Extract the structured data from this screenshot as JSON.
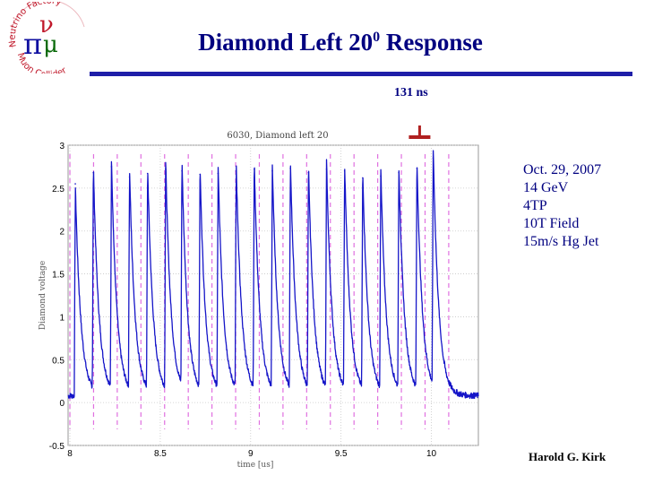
{
  "logo": {
    "arc_top": "Neutrino Factory",
    "arc_bottom": "Muon Collider",
    "symbols": "πμν",
    "colors": {
      "pi": "#1010a0",
      "mu": "#0a6a0a",
      "nu": "#c0182a",
      "ring": "#c0182a"
    }
  },
  "title": {
    "main": "Diamond Left 20",
    "superscript": "0",
    "suffix": " Response"
  },
  "annotation": {
    "label": "131 ns"
  },
  "info": {
    "lines": [
      "Oct. 29, 2007",
      "14 GeV",
      "4TP",
      "10T Field",
      "15m/s Hg Jet"
    ]
  },
  "author": "Harold G. Kirk",
  "colors": {
    "title": "#000080",
    "rule": "#1e1ea8",
    "trace": "#1515c8",
    "bunch_lines": "#e070e0",
    "annotation_marker": "#b02020"
  },
  "chart_data": {
    "type": "line",
    "title": "6030, Diamond left 20",
    "xlabel": "time [us]",
    "ylabel": "Diamond voltage",
    "xlim": [
      7.99,
      10.26
    ],
    "ylim": [
      -0.5,
      3
    ],
    "xticks": [
      8,
      8.5,
      9,
      9.5,
      10
    ],
    "xtick_labels": [
      "8",
      "8.5",
      "9",
      "9.5",
      "10"
    ],
    "yticks": [
      -0.5,
      0,
      0.5,
      1,
      1.5,
      2,
      2.5,
      3
    ],
    "ytick_labels": [
      "-0.5",
      "0",
      "0.5",
      "1",
      "1.5",
      "2",
      "2.5",
      "3"
    ],
    "grid": true,
    "baseline": 0.08,
    "pulse_decay_us": 0.03,
    "bunch_times_us": [
      8.0,
      8.131,
      8.262,
      8.393,
      8.524,
      8.655,
      8.786,
      8.917,
      9.048,
      9.179,
      9.31,
      9.441,
      9.572,
      9.703,
      9.834,
      9.965,
      10.096
    ],
    "series": [
      {
        "values": [
          {
            "x": 8.03,
            "y": 2.55
          },
          {
            "x": 8.13,
            "y": 2.68
          },
          {
            "x": 8.23,
            "y": 2.75
          },
          {
            "x": 8.33,
            "y": 2.63
          },
          {
            "x": 8.43,
            "y": 2.67
          },
          {
            "x": 8.53,
            "y": 2.72
          },
          {
            "x": 8.62,
            "y": 2.7
          },
          {
            "x": 8.72,
            "y": 2.66
          },
          {
            "x": 8.82,
            "y": 2.67
          },
          {
            "x": 8.92,
            "y": 2.7
          },
          {
            "x": 9.02,
            "y": 2.72
          },
          {
            "x": 9.12,
            "y": 2.7
          },
          {
            "x": 9.22,
            "y": 2.73
          },
          {
            "x": 9.32,
            "y": 2.68
          },
          {
            "x": 9.42,
            "y": 2.72
          },
          {
            "x": 9.52,
            "y": 2.7
          },
          {
            "x": 9.62,
            "y": 2.62
          },
          {
            "x": 9.72,
            "y": 2.64
          },
          {
            "x": 9.82,
            "y": 2.68
          },
          {
            "x": 9.92,
            "y": 2.73
          },
          {
            "x": 10.01,
            "y": 2.85
          }
        ]
      }
    ]
  }
}
